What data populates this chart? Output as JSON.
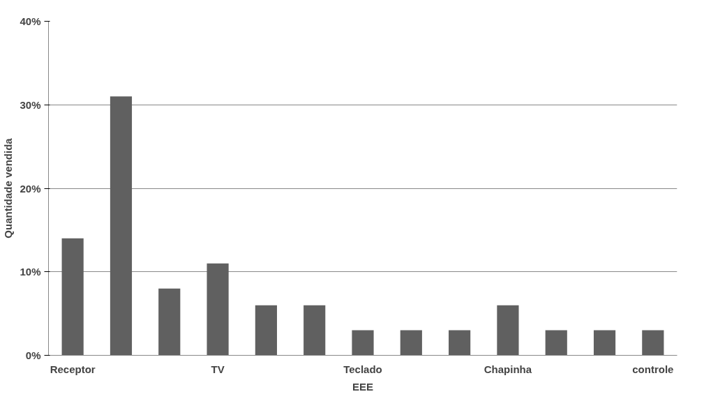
{
  "chart_data": {
    "type": "bar",
    "xlabel": "EEE",
    "ylabel": "Quantidade vendida",
    "categories": [
      "Receptor",
      null,
      null,
      "TV",
      null,
      null,
      "Teclado",
      null,
      null,
      "Chapinha",
      null,
      null,
      "controle"
    ],
    "values": [
      14,
      31,
      8,
      11,
      6,
      6,
      3,
      3,
      3,
      6,
      3,
      3,
      3
    ],
    "color": "#606060",
    "ylim": [
      0,
      40
    ],
    "yticks": [
      {
        "value": 0,
        "label": "0%"
      },
      {
        "value": 10,
        "label": "10%"
      },
      {
        "value": 20,
        "label": "20%"
      },
      {
        "value": 30,
        "label": "30%"
      },
      {
        "value": 40,
        "label": "40%"
      }
    ],
    "grid": "y"
  }
}
